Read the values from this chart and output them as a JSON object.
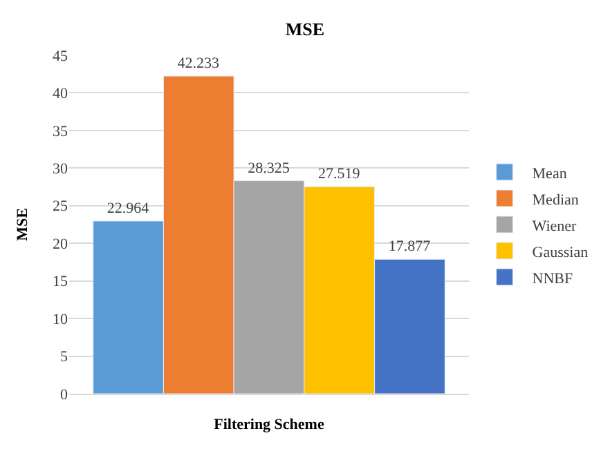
{
  "chart_data": {
    "type": "bar",
    "title": "MSE",
    "xlabel": "Filtering Scheme",
    "ylabel": "MSE",
    "categories": [
      null
    ],
    "series": [
      {
        "name": "Mean",
        "color": "#5b9bd5",
        "values": [
          22.964
        ]
      },
      {
        "name": "Median",
        "color": "#ed7d31",
        "values": [
          42.233
        ]
      },
      {
        "name": "Wiener",
        "color": "#a5a5a5",
        "values": [
          28.325
        ]
      },
      {
        "name": "Gaussian",
        "color": "#ffc000",
        "values": [
          27.519
        ]
      },
      {
        "name": "NNBF",
        "color": "#4472c4",
        "values": [
          17.877
        ]
      }
    ],
    "ylim": [
      0,
      45
    ],
    "yticks": [
      0,
      5,
      10,
      15,
      20,
      25,
      30,
      35,
      40,
      45
    ],
    "grid": "y",
    "legend": "right",
    "data_labels": true
  }
}
